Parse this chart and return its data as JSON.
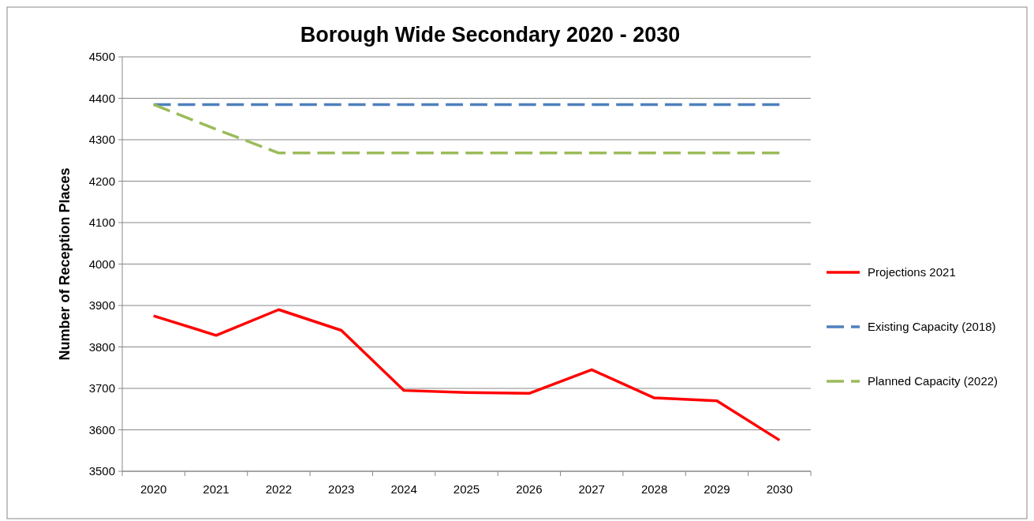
{
  "chart_data": {
    "type": "line",
    "title": "Borough Wide Secondary 2020 - 2030",
    "ylabel": "Number of Reception Places",
    "categories": [
      "2020",
      "2021",
      "2022",
      "2023",
      "2024",
      "2025",
      "2026",
      "2027",
      "2028",
      "2029",
      "2030"
    ],
    "series": [
      {
        "name": "Projections 2021",
        "color": "#ff0000",
        "line_style": "solid",
        "values": [
          3875,
          3828,
          3890,
          3840,
          3695,
          3690,
          3688,
          3745,
          3677,
          3670,
          3575
        ]
      },
      {
        "name": "Existing Capacity (2018)",
        "color": "#4f81bd",
        "line_style": "dashed",
        "values": [
          4385,
          4385,
          4385,
          4385,
          4385,
          4385,
          4385,
          4385,
          4385,
          4385,
          4385
        ]
      },
      {
        "name": "Planned Capacity (2022)",
        "color": "#9bbb59",
        "line_style": "dashed",
        "values": [
          4385,
          4325,
          4268,
          4268,
          4268,
          4268,
          4268,
          4268,
          4268,
          4268,
          4268
        ]
      }
    ],
    "ylim": [
      3500,
      4500
    ],
    "yticks": [
      3500,
      3600,
      3700,
      3800,
      3900,
      4000,
      4100,
      4200,
      4300,
      4400,
      4500
    ],
    "grid": "y",
    "legend": "right",
    "marker": "none"
  }
}
